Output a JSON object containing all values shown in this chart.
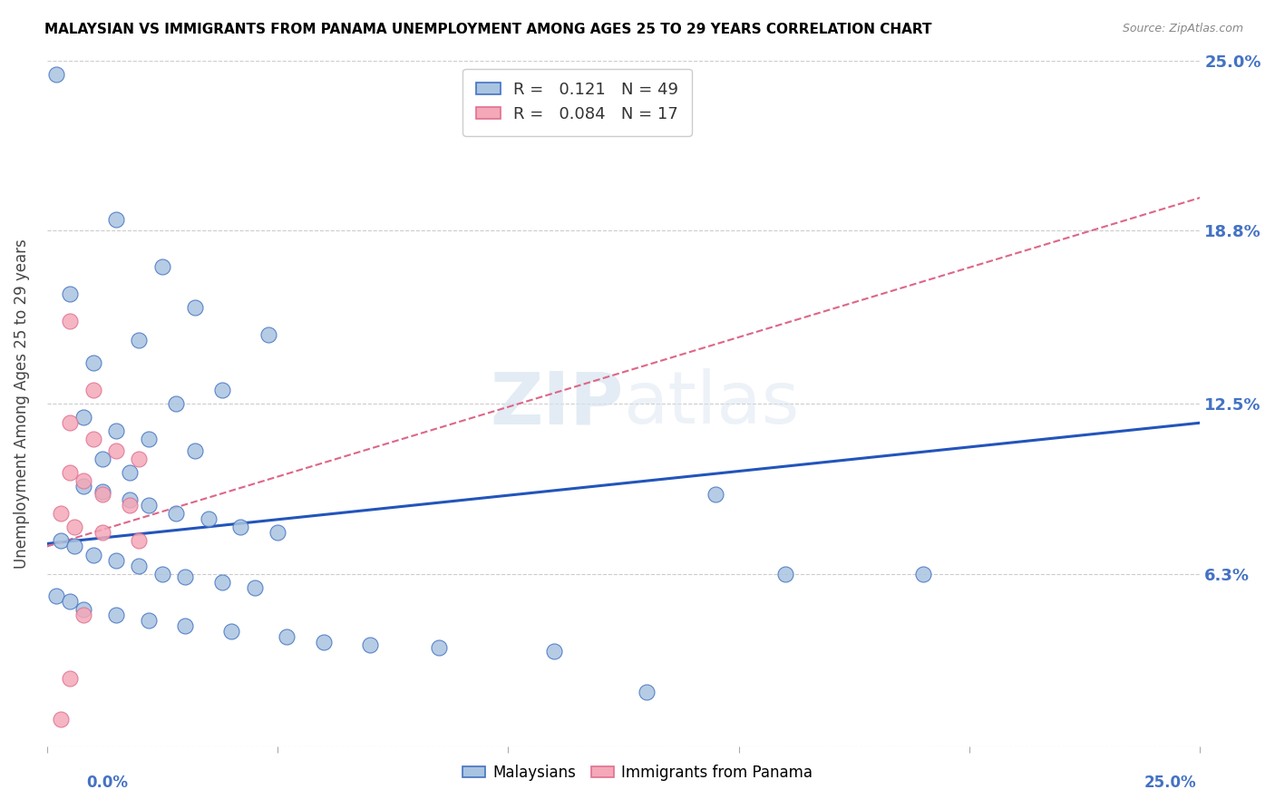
{
  "title": "MALAYSIAN VS IMMIGRANTS FROM PANAMA UNEMPLOYMENT AMONG AGES 25 TO 29 YEARS CORRELATION CHART",
  "source": "Source: ZipAtlas.com",
  "ylabel": "Unemployment Among Ages 25 to 29 years",
  "xlim": [
    0.0,
    0.25
  ],
  "ylim": [
    0.0,
    0.25
  ],
  "watermark": "ZIPatlas",
  "legend_r_blue": "0.121",
  "legend_n_blue": "49",
  "legend_r_pink": "0.084",
  "legend_n_pink": "17",
  "blue_fill": "#a8c4e0",
  "pink_fill": "#f4a8b8",
  "blue_edge": "#4472c4",
  "pink_edge": "#e07090",
  "blue_line": "#2255bb",
  "pink_line": "#dd6688",
  "blue_scatter": [
    [
      0.002,
      0.245
    ],
    [
      0.015,
      0.192
    ],
    [
      0.025,
      0.175
    ],
    [
      0.005,
      0.165
    ],
    [
      0.032,
      0.16
    ],
    [
      0.048,
      0.15
    ],
    [
      0.02,
      0.148
    ],
    [
      0.01,
      0.14
    ],
    [
      0.038,
      0.13
    ],
    [
      0.028,
      0.125
    ],
    [
      0.008,
      0.12
    ],
    [
      0.015,
      0.115
    ],
    [
      0.022,
      0.112
    ],
    [
      0.032,
      0.108
    ],
    [
      0.012,
      0.105
    ],
    [
      0.018,
      0.1
    ],
    [
      0.008,
      0.095
    ],
    [
      0.012,
      0.093
    ],
    [
      0.018,
      0.09
    ],
    [
      0.022,
      0.088
    ],
    [
      0.028,
      0.085
    ],
    [
      0.035,
      0.083
    ],
    [
      0.042,
      0.08
    ],
    [
      0.05,
      0.078
    ],
    [
      0.003,
      0.075
    ],
    [
      0.006,
      0.073
    ],
    [
      0.01,
      0.07
    ],
    [
      0.015,
      0.068
    ],
    [
      0.02,
      0.066
    ],
    [
      0.025,
      0.063
    ],
    [
      0.03,
      0.062
    ],
    [
      0.038,
      0.06
    ],
    [
      0.045,
      0.058
    ],
    [
      0.002,
      0.055
    ],
    [
      0.005,
      0.053
    ],
    [
      0.008,
      0.05
    ],
    [
      0.015,
      0.048
    ],
    [
      0.022,
      0.046
    ],
    [
      0.03,
      0.044
    ],
    [
      0.04,
      0.042
    ],
    [
      0.052,
      0.04
    ],
    [
      0.06,
      0.038
    ],
    [
      0.07,
      0.037
    ],
    [
      0.085,
      0.036
    ],
    [
      0.11,
      0.035
    ],
    [
      0.145,
      0.092
    ],
    [
      0.16,
      0.063
    ],
    [
      0.19,
      0.063
    ],
    [
      0.13,
      0.02
    ]
  ],
  "pink_scatter": [
    [
      0.005,
      0.155
    ],
    [
      0.01,
      0.13
    ],
    [
      0.005,
      0.118
    ],
    [
      0.01,
      0.112
    ],
    [
      0.015,
      0.108
    ],
    [
      0.02,
      0.105
    ],
    [
      0.005,
      0.1
    ],
    [
      0.008,
      0.097
    ],
    [
      0.012,
      0.092
    ],
    [
      0.018,
      0.088
    ],
    [
      0.003,
      0.085
    ],
    [
      0.006,
      0.08
    ],
    [
      0.012,
      0.078
    ],
    [
      0.02,
      0.075
    ],
    [
      0.008,
      0.048
    ],
    [
      0.005,
      0.025
    ],
    [
      0.003,
      0.01
    ]
  ]
}
